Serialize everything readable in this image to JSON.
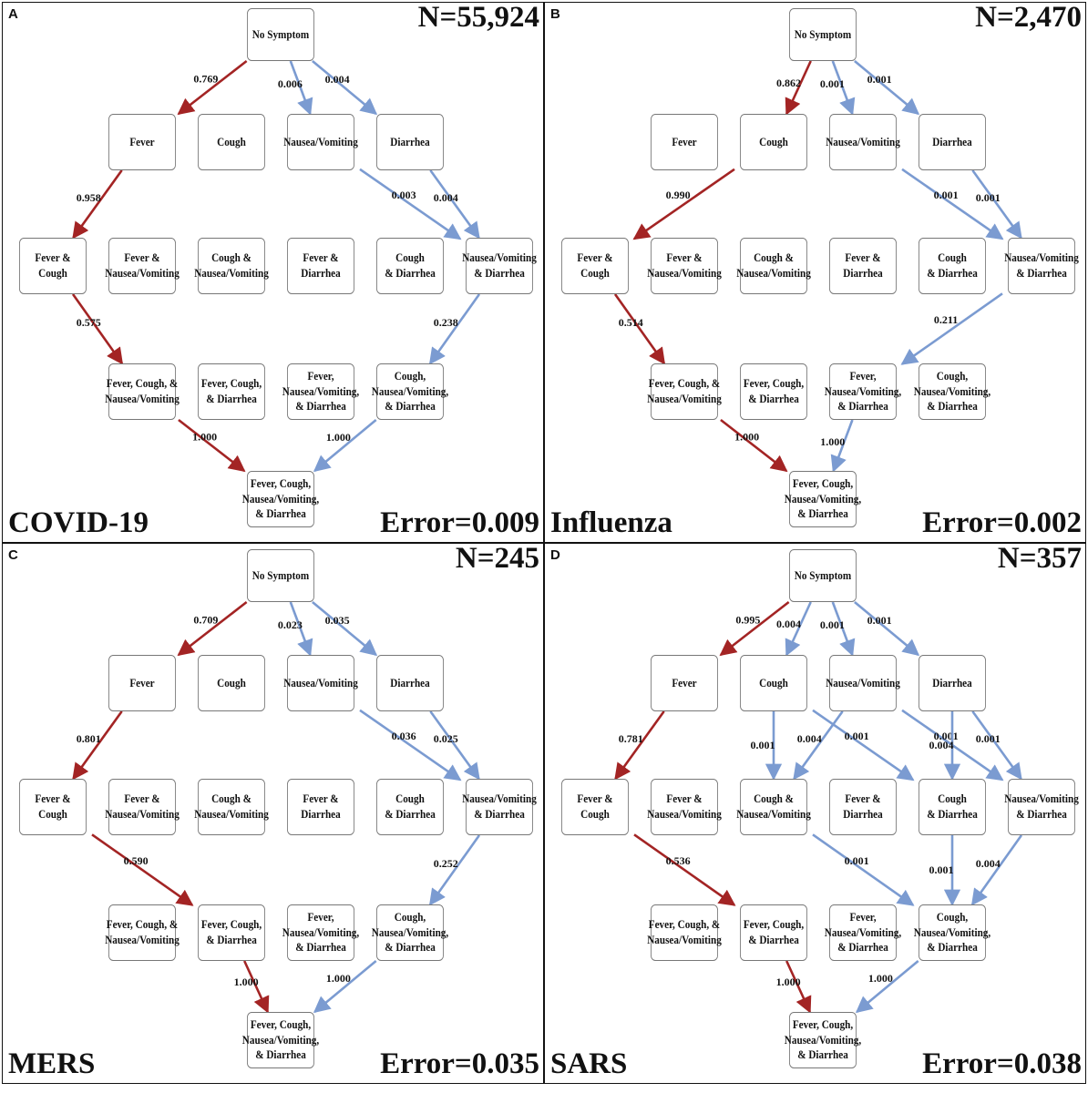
{
  "colors": {
    "primary_path": "#a32424",
    "secondary_path": "#7b9bd1"
  },
  "panels": [
    {
      "letter": "A",
      "disease": "COVID-19",
      "n_label": "N=55,924",
      "error_label": "Error=0.009",
      "nodes": [
        "No Symptom",
        "Fever",
        "Cough",
        "Nausea/Vomiting",
        "Diarrhea",
        "Fever & Cough",
        "Fever &\nNausea/Vomiting",
        "Cough &\nNausea/Vomiting",
        "Fever &\nDiarrhea",
        "Cough\n& Diarrhea",
        "Nausea/Vomiting\n& Diarrhea",
        "Fever, Cough, &\nNausea/Vomiting",
        "Fever, Cough,\n& Diarrhea",
        "Fever,\nNausea/Vomiting,\n& Diarrhea",
        "Cough,\nNausea/Vomiting,\n& Diarrhea",
        "Fever, Cough,\nNausea/Vomiting,\n& Diarrhea"
      ],
      "edges": [
        {
          "from": 0,
          "to": 1,
          "weight": "0.769",
          "path": "primary"
        },
        {
          "from": 0,
          "to": 3,
          "weight": "0.006",
          "path": "secondary"
        },
        {
          "from": 0,
          "to": 4,
          "weight": "0.004",
          "path": "secondary"
        },
        {
          "from": 1,
          "to": 5,
          "weight": "0.958",
          "path": "primary"
        },
        {
          "from": 3,
          "to": 10,
          "weight": "0.003",
          "path": "secondary"
        },
        {
          "from": 4,
          "to": 10,
          "weight": "0.004",
          "path": "secondary"
        },
        {
          "from": 5,
          "to": 11,
          "weight": "0.575",
          "path": "primary"
        },
        {
          "from": 10,
          "to": 14,
          "weight": "0.238",
          "path": "secondary"
        },
        {
          "from": 11,
          "to": 15,
          "weight": "1.000",
          "path": "primary"
        },
        {
          "from": 14,
          "to": 15,
          "weight": "1.000",
          "path": "secondary"
        }
      ]
    },
    {
      "letter": "B",
      "disease": "Influenza",
      "n_label": "N=2,470",
      "error_label": "Error=0.002",
      "nodes": [
        "No Symptom",
        "Fever",
        "Cough",
        "Nausea/Vomiting",
        "Diarrhea",
        "Fever & Cough",
        "Fever &\nNausea/Vomiting",
        "Cough &\nNausea/Vomiting",
        "Fever &\nDiarrhea",
        "Cough\n& Diarrhea",
        "Nausea/Vomiting\n& Diarrhea",
        "Fever, Cough, &\nNausea/Vomiting",
        "Fever, Cough,\n& Diarrhea",
        "Fever,\nNausea/Vomiting,\n& Diarrhea",
        "Cough,\nNausea/Vomiting,\n& Diarrhea",
        "Fever, Cough,\nNausea/Vomiting,\n& Diarrhea"
      ],
      "edges": [
        {
          "from": 0,
          "to": 2,
          "weight": "0.862",
          "path": "primary"
        },
        {
          "from": 0,
          "to": 3,
          "weight": "0.001",
          "path": "secondary"
        },
        {
          "from": 0,
          "to": 4,
          "weight": "0.001",
          "path": "secondary"
        },
        {
          "from": 2,
          "to": 5,
          "weight": "0.990",
          "path": "primary"
        },
        {
          "from": 3,
          "to": 10,
          "weight": "0.001",
          "path": "secondary"
        },
        {
          "from": 4,
          "to": 10,
          "weight": "0.001",
          "path": "secondary"
        },
        {
          "from": 5,
          "to": 11,
          "weight": "0.514",
          "path": "primary"
        },
        {
          "from": 10,
          "to": 13,
          "weight": "0.211",
          "path": "secondary"
        },
        {
          "from": 11,
          "to": 15,
          "weight": "1.000",
          "path": "primary"
        },
        {
          "from": 13,
          "to": 15,
          "weight": "1.000",
          "path": "secondary"
        }
      ]
    },
    {
      "letter": "C",
      "disease": "MERS",
      "n_label": "N=245",
      "error_label": "Error=0.035",
      "nodes": [
        "No Symptom",
        "Fever",
        "Cough",
        "Nausea/Vomiting",
        "Diarrhea",
        "Fever & Cough",
        "Fever &\nNausea/Vomiting",
        "Cough &\nNausea/Vomiting",
        "Fever &\nDiarrhea",
        "Cough\n& Diarrhea",
        "Nausea/Vomiting\n& Diarrhea",
        "Fever, Cough, &\nNausea/Vomiting",
        "Fever, Cough,\n& Diarrhea",
        "Fever,\nNausea/Vomiting,\n& Diarrhea",
        "Cough,\nNausea/Vomiting,\n& Diarrhea",
        "Fever, Cough,\nNausea/Vomiting,\n& Diarrhea"
      ],
      "edges": [
        {
          "from": 0,
          "to": 1,
          "weight": "0.709",
          "path": "primary"
        },
        {
          "from": 0,
          "to": 3,
          "weight": "0.023",
          "path": "secondary"
        },
        {
          "from": 0,
          "to": 4,
          "weight": "0.035",
          "path": "secondary"
        },
        {
          "from": 1,
          "to": 5,
          "weight": "0.801",
          "path": "primary"
        },
        {
          "from": 3,
          "to": 10,
          "weight": "0.036",
          "path": "secondary"
        },
        {
          "from": 4,
          "to": 10,
          "weight": "0.025",
          "path": "secondary"
        },
        {
          "from": 5,
          "to": 12,
          "weight": "0.590",
          "path": "primary"
        },
        {
          "from": 10,
          "to": 14,
          "weight": "0.252",
          "path": "secondary"
        },
        {
          "from": 12,
          "to": 15,
          "weight": "1.000",
          "path": "primary"
        },
        {
          "from": 14,
          "to": 15,
          "weight": "1.000",
          "path": "secondary"
        }
      ]
    },
    {
      "letter": "D",
      "disease": "SARS",
      "n_label": "N=357",
      "error_label": "Error=0.038",
      "nodes": [
        "No Symptom",
        "Fever",
        "Cough",
        "Nausea/Vomiting",
        "Diarrhea",
        "Fever & Cough",
        "Fever &\nNausea/Vomiting",
        "Cough &\nNausea/Vomiting",
        "Fever &\nDiarrhea",
        "Cough\n& Diarrhea",
        "Nausea/Vomiting\n& Diarrhea",
        "Fever, Cough, &\nNausea/Vomiting",
        "Fever, Cough,\n& Diarrhea",
        "Fever,\nNausea/Vomiting,\n& Diarrhea",
        "Cough,\nNausea/Vomiting,\n& Diarrhea",
        "Fever, Cough,\nNausea/Vomiting,\n& Diarrhea"
      ],
      "edges": [
        {
          "from": 0,
          "to": 1,
          "weight": "0.995",
          "path": "primary"
        },
        {
          "from": 0,
          "to": 2,
          "weight": "0.004",
          "path": "secondary"
        },
        {
          "from": 0,
          "to": 3,
          "weight": "0.001",
          "path": "secondary"
        },
        {
          "from": 0,
          "to": 4,
          "weight": "0.001",
          "path": "secondary"
        },
        {
          "from": 1,
          "to": 5,
          "weight": "0.781",
          "path": "primary"
        },
        {
          "from": 2,
          "to": 7,
          "weight": "0.001",
          "path": "secondary"
        },
        {
          "from": 2,
          "to": 9,
          "weight": "0.001",
          "path": "secondary"
        },
        {
          "from": 3,
          "to": 7,
          "weight": "0.004",
          "path": "secondary"
        },
        {
          "from": 3,
          "to": 10,
          "weight": "0.001",
          "path": "secondary"
        },
        {
          "from": 4,
          "to": 9,
          "weight": "0.004",
          "path": "secondary"
        },
        {
          "from": 4,
          "to": 10,
          "weight": "0.001",
          "path": "secondary"
        },
        {
          "from": 5,
          "to": 12,
          "weight": "0.536",
          "path": "primary"
        },
        {
          "from": 7,
          "to": 14,
          "weight": "0.001",
          "path": "secondary"
        },
        {
          "from": 9,
          "to": 14,
          "weight": "0.001",
          "path": "secondary"
        },
        {
          "from": 10,
          "to": 14,
          "weight": "0.004",
          "path": "secondary"
        },
        {
          "from": 12,
          "to": 15,
          "weight": "1.000",
          "path": "primary"
        },
        {
          "from": 14,
          "to": 15,
          "weight": "1.000",
          "path": "secondary"
        }
      ]
    }
  ]
}
